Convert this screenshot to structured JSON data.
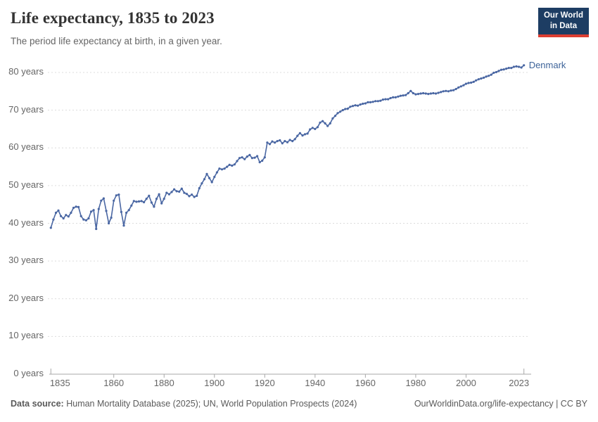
{
  "header": {
    "title": "Life expectancy, 1835 to 2023",
    "subtitle": "The period life expectancy at birth, in a given year."
  },
  "logo": {
    "line1": "Our World",
    "line2": "in Data",
    "bg_color": "#1d3d63",
    "accent_color": "#dc3e32"
  },
  "chart_data": {
    "type": "line",
    "title": "Life expectancy, 1835 to 2023",
    "xlabel": "",
    "ylabel": "",
    "grid": "dashed horizontal gridlines",
    "legend_position": "end-of-line label",
    "x_range": [
      1835,
      2023
    ],
    "y_range": [
      0,
      85
    ],
    "y_ticks": [
      0,
      10,
      20,
      30,
      40,
      50,
      60,
      70,
      80
    ],
    "y_tick_labels": [
      "0 years",
      "10 years",
      "20 years",
      "30 years",
      "40 years",
      "50 years",
      "60 years",
      "70 years",
      "80 years"
    ],
    "x_ticks": [
      1835,
      1860,
      1880,
      1900,
      1920,
      1940,
      1960,
      1980,
      2000,
      2023
    ],
    "x_tick_labels": [
      "1835",
      "1860",
      "1880",
      "1900",
      "1920",
      "1940",
      "1960",
      "1980",
      "2000",
      "2023"
    ],
    "series": [
      {
        "name": "Denmark",
        "color": "#4a67a3",
        "label_color": "#3d6399",
        "x_start": 1835,
        "x_step": 1,
        "values": [
          38.8,
          41.0,
          42.8,
          43.4,
          41.9,
          41.3,
          42.2,
          41.8,
          42.8,
          44.1,
          44.4,
          44.3,
          41.9,
          41.0,
          40.8,
          41.3,
          43.1,
          43.5,
          38.5,
          43.8,
          46.0,
          46.6,
          43.3,
          40.0,
          41.5,
          46.0,
          47.4,
          47.6,
          43.0,
          39.4,
          42.8,
          43.5,
          44.7,
          45.9,
          45.7,
          45.8,
          45.9,
          45.6,
          46.5,
          47.3,
          45.5,
          44.4,
          46.5,
          47.7,
          45.3,
          46.5,
          48.1,
          47.7,
          48.3,
          49.0,
          48.5,
          48.4,
          49.2,
          48.1,
          47.8,
          47.2,
          47.6,
          47.0,
          47.3,
          49.3,
          50.6,
          51.7,
          53.1,
          52.0,
          50.9,
          52.3,
          53.5,
          54.5,
          54.3,
          54.5,
          55.0,
          55.5,
          55.3,
          55.6,
          56.5,
          57.3,
          57.5,
          57.0,
          57.7,
          58.1,
          57.3,
          57.4,
          57.8,
          56.2,
          56.6,
          57.5,
          61.4,
          61.0,
          61.7,
          61.4,
          61.8,
          62.0,
          61.2,
          61.8,
          61.5,
          62.1,
          61.8,
          62.3,
          63.2,
          63.9,
          63.3,
          63.6,
          63.8,
          64.9,
          65.3,
          65.0,
          65.5,
          66.7,
          67.1,
          66.5,
          65.8,
          66.5,
          67.8,
          68.5,
          69.2,
          69.6,
          70.0,
          70.3,
          70.4,
          70.9,
          71.1,
          71.3,
          71.2,
          71.5,
          71.7,
          71.8,
          72.1,
          72.1,
          72.2,
          72.4,
          72.4,
          72.5,
          72.8,
          72.9,
          72.9,
          73.2,
          73.4,
          73.4,
          73.6,
          73.8,
          73.9,
          74.0,
          74.5,
          75.1,
          74.5,
          74.2,
          74.3,
          74.4,
          74.5,
          74.4,
          74.3,
          74.4,
          74.5,
          74.4,
          74.6,
          74.8,
          75.0,
          75.1,
          75.0,
          75.2,
          75.3,
          75.6,
          76.0,
          76.3,
          76.6,
          77.0,
          77.2,
          77.3,
          77.5,
          77.9,
          78.2,
          78.4,
          78.6,
          78.9,
          79.1,
          79.4,
          79.9,
          80.1,
          80.4,
          80.7,
          80.8,
          81.0,
          81.2,
          81.2,
          81.5,
          81.6,
          81.5,
          81.3,
          81.9
        ]
      }
    ]
  },
  "footer": {
    "source_label": "Data source:",
    "source_text": "Human Mortality Database (2025); UN, World Population Prospects (2024)",
    "right_text": "OurWorldinData.org/life-expectancy | CC BY"
  }
}
